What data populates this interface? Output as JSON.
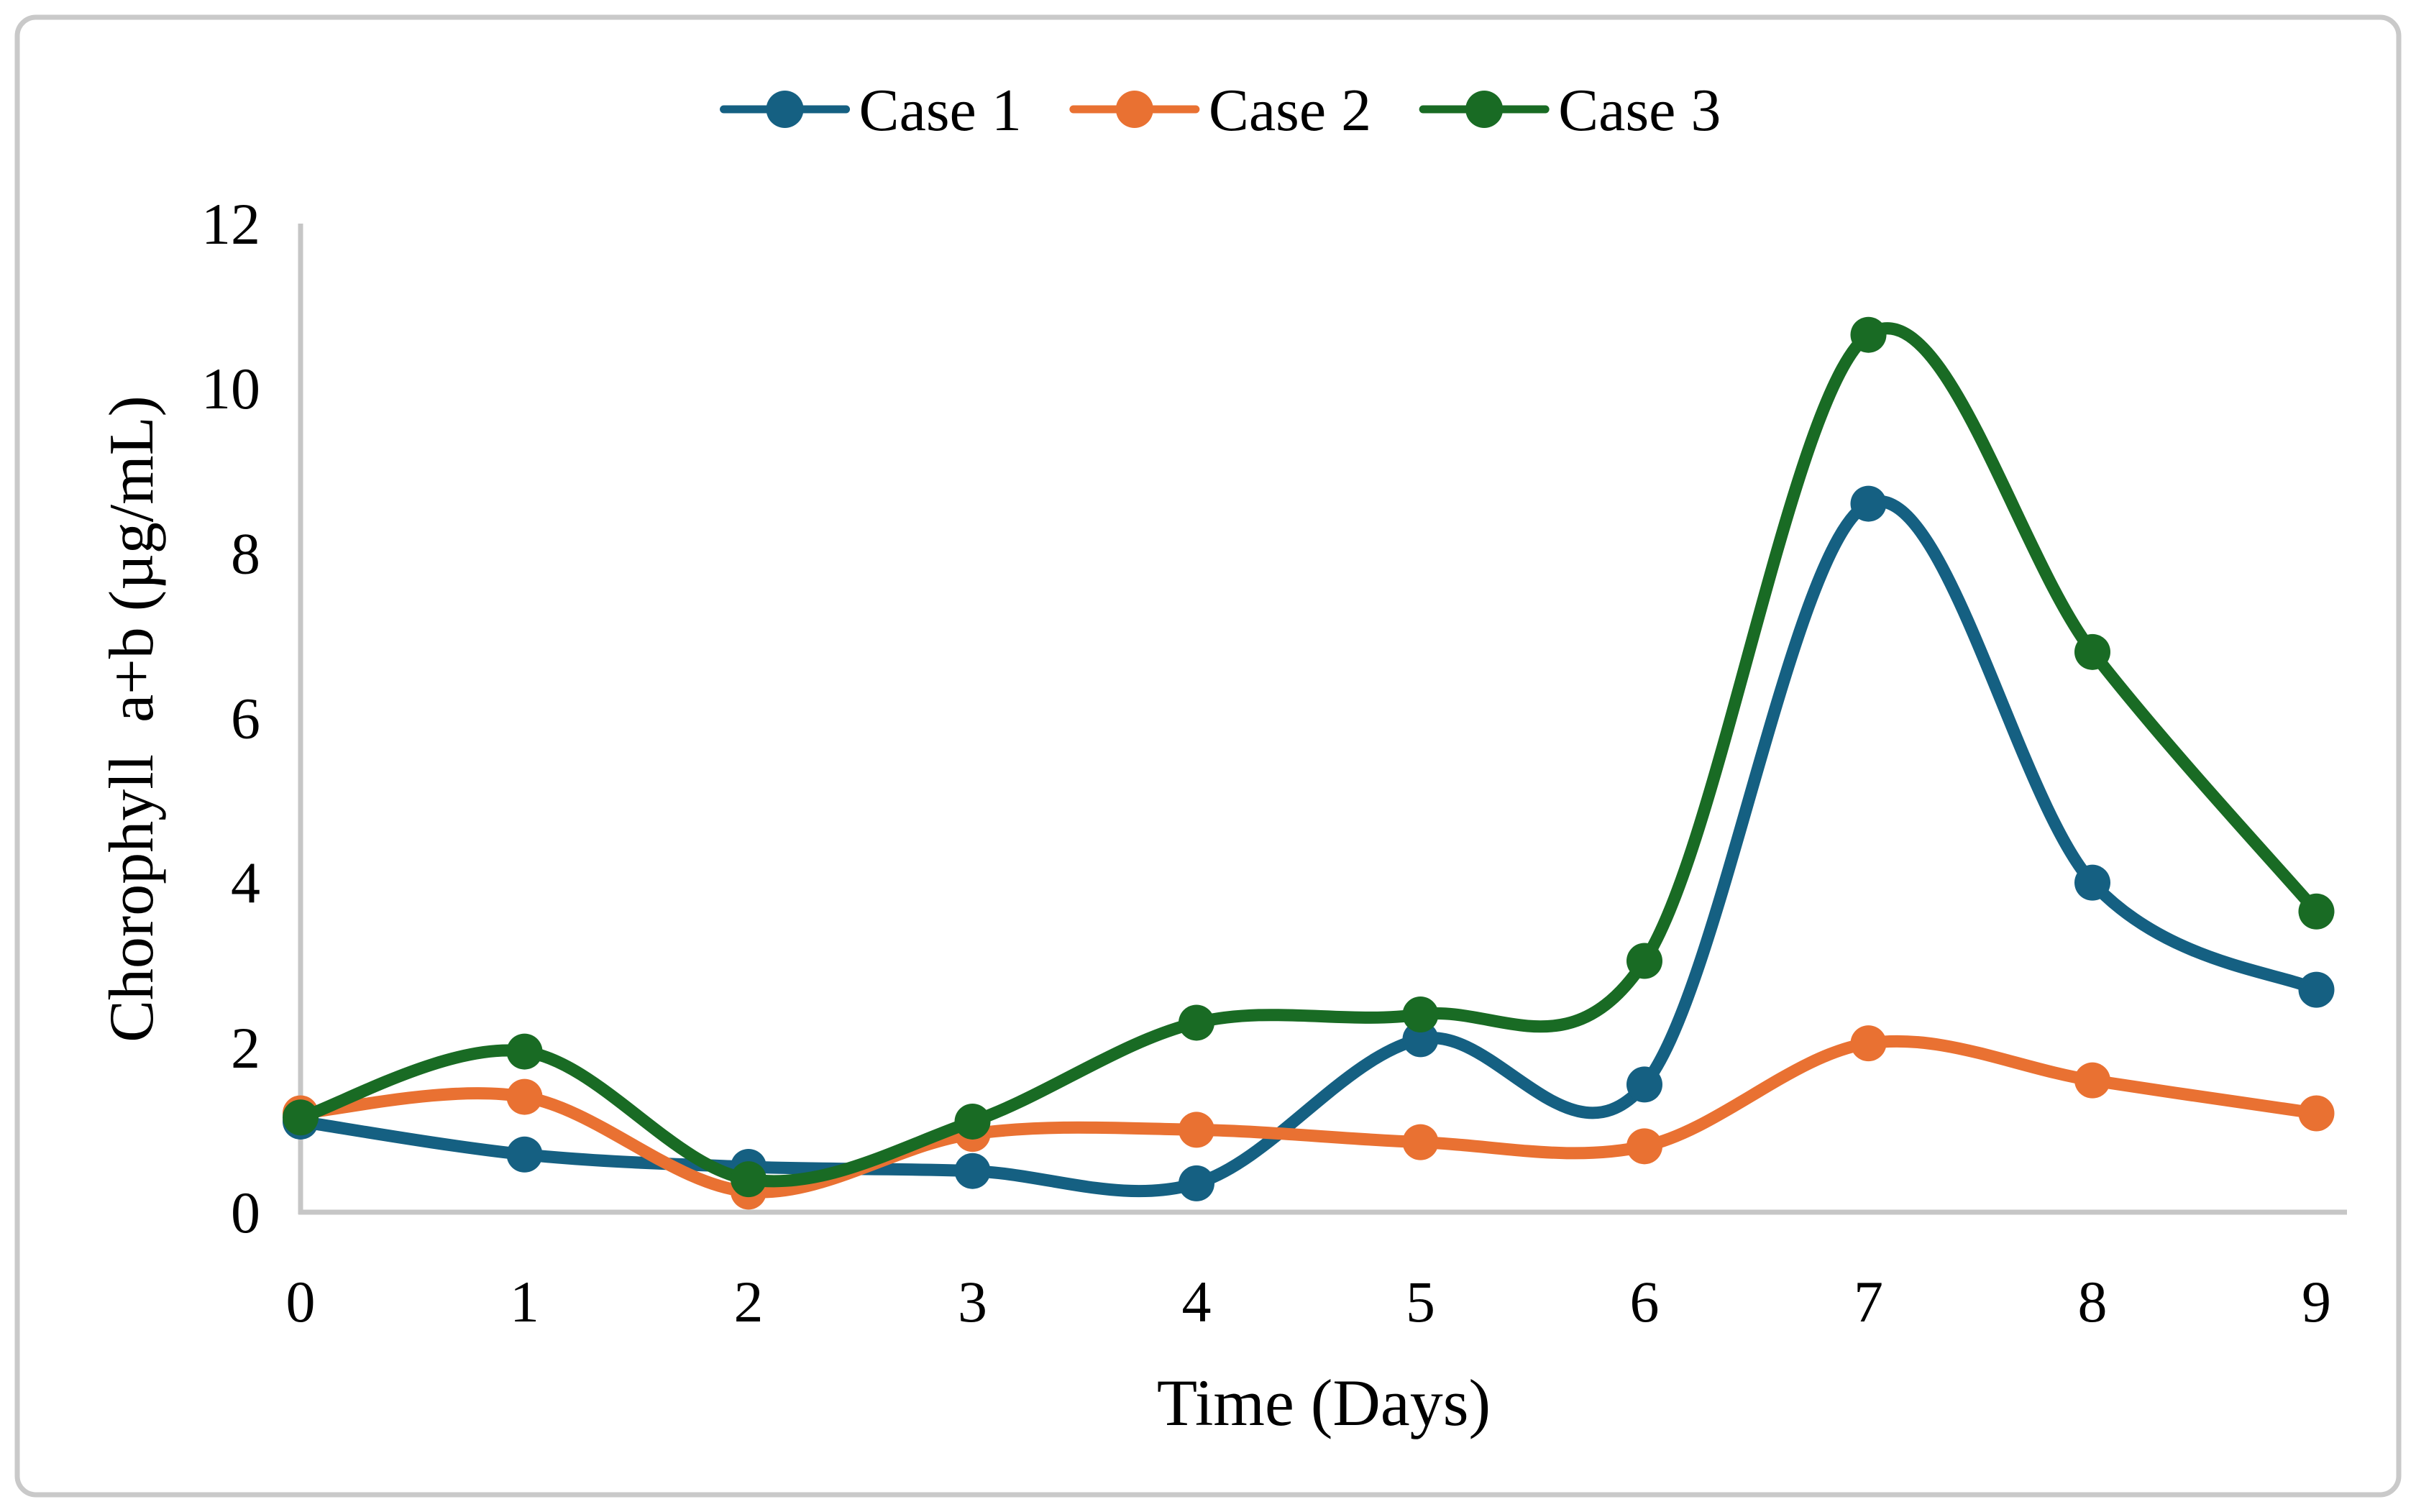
{
  "figure": {
    "background": "#ffffff",
    "border_color": "#c9c9c9",
    "axis_color": "#c6c6c6",
    "text_color": "#000000"
  },
  "chart_data": {
    "type": "line",
    "title": "",
    "xlabel": "Time (Days)",
    "ylabel": "Chorophyll  a+b (µg/mL)",
    "line_style": "smooth",
    "marker": "circle",
    "grid": false,
    "legend_position": "top-center",
    "x": [
      0,
      1,
      2,
      3,
      4,
      5,
      6,
      7,
      8,
      9
    ],
    "xticks": [
      0,
      1,
      2,
      3,
      4,
      5,
      6,
      7,
      8,
      9
    ],
    "yticks": [
      0,
      2,
      4,
      6,
      8,
      10,
      12
    ],
    "xlim": [
      0,
      9
    ],
    "ylim": [
      0,
      12
    ],
    "series": [
      {
        "name": "Case 1",
        "color": "#156082",
        "values": [
          1.1,
          0.7,
          0.55,
          0.5,
          0.35,
          2.1,
          1.55,
          8.6,
          4.0,
          2.7
        ]
      },
      {
        "name": "Case 2",
        "color": "#E97132",
        "values": [
          1.2,
          1.4,
          0.25,
          0.95,
          1.0,
          0.85,
          0.8,
          2.05,
          1.6,
          1.2
        ]
      },
      {
        "name": "Case 3",
        "color": "#196B24",
        "values": [
          1.15,
          1.95,
          0.4,
          1.1,
          2.3,
          2.4,
          3.05,
          10.65,
          6.8,
          3.65
        ]
      }
    ]
  }
}
